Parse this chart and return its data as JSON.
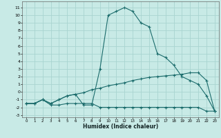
{
  "xlabel": "Humidex (Indice chaleur)",
  "bg_color": "#c8eae6",
  "grid_color": "#a8d4d0",
  "line_color": "#1a6b6b",
  "xlim": [
    -0.5,
    23.5
  ],
  "ylim": [
    -3.3,
    11.8
  ],
  "xticks": [
    0,
    1,
    2,
    3,
    4,
    5,
    6,
    7,
    8,
    9,
    10,
    11,
    12,
    13,
    14,
    15,
    16,
    17,
    18,
    19,
    20,
    21,
    22,
    23
  ],
  "yticks": [
    -3,
    -2,
    -1,
    0,
    1,
    2,
    3,
    4,
    5,
    6,
    7,
    8,
    9,
    10,
    11
  ],
  "line1_x": [
    0,
    1,
    2,
    3,
    4,
    5,
    6,
    7,
    8,
    9,
    10,
    11,
    12,
    13,
    14,
    15,
    16,
    17,
    18,
    19,
    20,
    21,
    22,
    23
  ],
  "line1_y": [
    -1.5,
    -1.5,
    -1.0,
    -1.7,
    -1.7,
    -1.5,
    -1.5,
    -1.5,
    -1.5,
    -2.0,
    -2.0,
    -2.0,
    -2.0,
    -2.0,
    -2.0,
    -2.0,
    -2.0,
    -2.0,
    -2.0,
    -2.0,
    -2.0,
    -2.0,
    -2.5,
    -2.5
  ],
  "line2_x": [
    0,
    1,
    2,
    3,
    4,
    5,
    6,
    7,
    8,
    9,
    10,
    11,
    12,
    13,
    14,
    15,
    16,
    17,
    18,
    19,
    20,
    21,
    22,
    23
  ],
  "line2_y": [
    -1.5,
    -1.5,
    -1.0,
    -1.5,
    -1.0,
    -0.5,
    -0.3,
    -0.1,
    0.3,
    0.5,
    0.8,
    1.0,
    1.2,
    1.5,
    1.7,
    1.9,
    2.0,
    2.1,
    2.2,
    2.3,
    2.5,
    2.5,
    1.5,
    -2.5
  ],
  "line3_x": [
    0,
    1,
    2,
    3,
    4,
    5,
    6,
    7,
    8,
    9,
    10,
    11,
    12,
    13,
    14,
    15,
    16,
    17,
    18,
    19,
    20,
    21,
    22,
    23
  ],
  "line3_y": [
    -1.5,
    -1.5,
    -1.0,
    -1.5,
    -1.0,
    -0.5,
    -0.3,
    -1.7,
    -1.7,
    3.0,
    10.0,
    10.5,
    11.0,
    10.5,
    9.0,
    8.5,
    5.0,
    4.5,
    3.5,
    2.0,
    1.5,
    1.0,
    -0.5,
    -2.5
  ]
}
